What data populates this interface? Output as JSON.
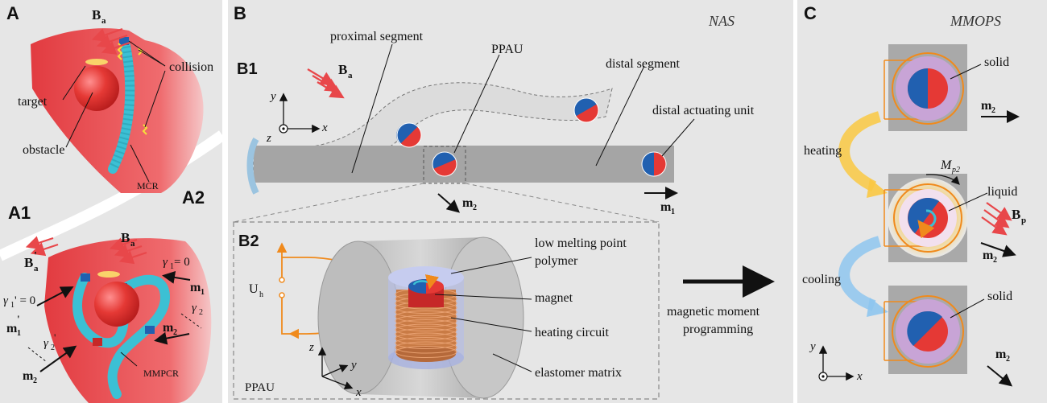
{
  "panels": {
    "A": "A",
    "A1": "A1",
    "A2": "A2",
    "B": "B",
    "B1": "B1",
    "B2": "B2",
    "C": "C"
  },
  "panel_a": {
    "field_ba": "B",
    "field_ba_sub": "a",
    "collision": "collision",
    "target": "target",
    "obstacle": "obstacle",
    "robot": "MCR"
  },
  "panel_a2": {
    "field_ba": "B",
    "field_ba_sub": "a",
    "field_ba_prime": "B",
    "field_ba_prime_sub": "a",
    "field_ba_prime_mark": "'",
    "gamma1_eq": "γ",
    "gamma1_sub": "1",
    "gamma1_val": " = 0",
    "gamma1p_eq": "γ",
    "gamma1p_sub": "1",
    "gamma1p_val": "' = 0",
    "gamma2": "γ",
    "gamma2_sub": "2",
    "gamma2p": "γ",
    "gamma2p_sub": "2",
    "gamma2p_mark": "'",
    "m1": "m",
    "m1_sub": "1",
    "m1p": "m",
    "m1p_sub": "1",
    "m1p_mark": "'",
    "m2": "m",
    "m2_sub": "2",
    "m2p": "m",
    "m2p_sub": "2",
    "robot": "MMPCR"
  },
  "panel_b": {
    "title": "NAS",
    "proximal": "proximal segment",
    "ppau": "PPAU",
    "distal": "distal segment",
    "distal_unit": "distal actuating unit",
    "field_ba": "B",
    "field_ba_sub": "a",
    "axis_x": "x",
    "axis_y": "y",
    "axis_z": "z",
    "m2": "m",
    "m2_sub": "2",
    "m1": "m",
    "m1_sub": "1"
  },
  "panel_b2": {
    "voltage": "U",
    "voltage_sub": "h",
    "polymer_line1": "low melting point",
    "polymer_line2": "polymer",
    "magnet": "magnet",
    "heating": "heating circuit",
    "matrix": "elastomer matrix",
    "unit_label": "PPAU",
    "axis_x": "x",
    "axis_y": "y",
    "axis_z": "z"
  },
  "programming": {
    "line1": "magnetic moment",
    "line2": "programming"
  },
  "panel_c": {
    "title": "MMOPS",
    "solid_top": "solid",
    "liquid": "liquid",
    "solid_bottom": "solid",
    "heating": "heating",
    "cooling": "cooling",
    "mp2": "M",
    "mp2_sub": "p2",
    "field_bp": "B",
    "field_bp_sub": "p",
    "m2_a": "m",
    "m2_a_sub": "2",
    "m2_b": "m",
    "m2_b_sub": "2",
    "m2_c": "m",
    "m2_c_sub": "2",
    "axis_x": "x",
    "axis_y": "y"
  },
  "colors": {
    "tissue": "#e8474a",
    "robot_cyan": "#3cc0d4",
    "magnet_blue": "#2160b0",
    "magnet_red": "#e53935",
    "field_arrow": "#e8474a",
    "panel_bg": "#e6e6e6",
    "heating_arrow": "#f9c842",
    "cooling_arrow": "#8ec5ee",
    "circuit_orange": "#f08a1c",
    "rod_gray": "#a5a5a5"
  }
}
